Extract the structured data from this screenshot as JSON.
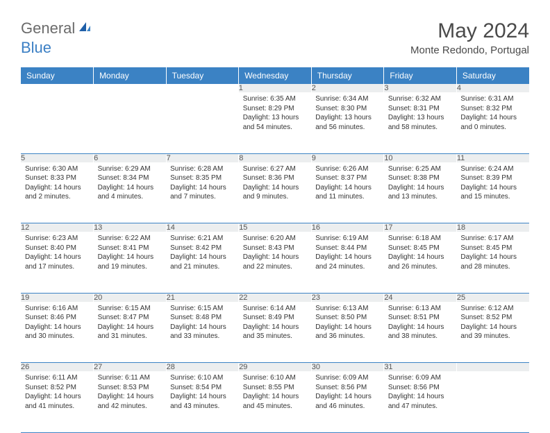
{
  "brand": {
    "part1": "General",
    "part2": "Blue"
  },
  "title": "May 2024",
  "location": "Monte Redondo, Portugal",
  "colors": {
    "header_bg": "#3b82c4",
    "header_text": "#ffffff",
    "daynum_bg": "#eceeef",
    "daynum_text": "#555555",
    "body_text": "#333333",
    "rule": "#3b82c4",
    "title_text": "#4a4a4a",
    "logo_gray": "#6b6b6b",
    "logo_blue": "#3b7fc4"
  },
  "weekdays": [
    "Sunday",
    "Monday",
    "Tuesday",
    "Wednesday",
    "Thursday",
    "Friday",
    "Saturday"
  ],
  "weeks": [
    [
      {
        "day": "",
        "sunrise": "",
        "sunset": "",
        "daylight": ""
      },
      {
        "day": "",
        "sunrise": "",
        "sunset": "",
        "daylight": ""
      },
      {
        "day": "",
        "sunrise": "",
        "sunset": "",
        "daylight": ""
      },
      {
        "day": "1",
        "sunrise": "Sunrise: 6:35 AM",
        "sunset": "Sunset: 8:29 PM",
        "daylight": "Daylight: 13 hours and 54 minutes."
      },
      {
        "day": "2",
        "sunrise": "Sunrise: 6:34 AM",
        "sunset": "Sunset: 8:30 PM",
        "daylight": "Daylight: 13 hours and 56 minutes."
      },
      {
        "day": "3",
        "sunrise": "Sunrise: 6:32 AM",
        "sunset": "Sunset: 8:31 PM",
        "daylight": "Daylight: 13 hours and 58 minutes."
      },
      {
        "day": "4",
        "sunrise": "Sunrise: 6:31 AM",
        "sunset": "Sunset: 8:32 PM",
        "daylight": "Daylight: 14 hours and 0 minutes."
      }
    ],
    [
      {
        "day": "5",
        "sunrise": "Sunrise: 6:30 AM",
        "sunset": "Sunset: 8:33 PM",
        "daylight": "Daylight: 14 hours and 2 minutes."
      },
      {
        "day": "6",
        "sunrise": "Sunrise: 6:29 AM",
        "sunset": "Sunset: 8:34 PM",
        "daylight": "Daylight: 14 hours and 4 minutes."
      },
      {
        "day": "7",
        "sunrise": "Sunrise: 6:28 AM",
        "sunset": "Sunset: 8:35 PM",
        "daylight": "Daylight: 14 hours and 7 minutes."
      },
      {
        "day": "8",
        "sunrise": "Sunrise: 6:27 AM",
        "sunset": "Sunset: 8:36 PM",
        "daylight": "Daylight: 14 hours and 9 minutes."
      },
      {
        "day": "9",
        "sunrise": "Sunrise: 6:26 AM",
        "sunset": "Sunset: 8:37 PM",
        "daylight": "Daylight: 14 hours and 11 minutes."
      },
      {
        "day": "10",
        "sunrise": "Sunrise: 6:25 AM",
        "sunset": "Sunset: 8:38 PM",
        "daylight": "Daylight: 14 hours and 13 minutes."
      },
      {
        "day": "11",
        "sunrise": "Sunrise: 6:24 AM",
        "sunset": "Sunset: 8:39 PM",
        "daylight": "Daylight: 14 hours and 15 minutes."
      }
    ],
    [
      {
        "day": "12",
        "sunrise": "Sunrise: 6:23 AM",
        "sunset": "Sunset: 8:40 PM",
        "daylight": "Daylight: 14 hours and 17 minutes."
      },
      {
        "day": "13",
        "sunrise": "Sunrise: 6:22 AM",
        "sunset": "Sunset: 8:41 PM",
        "daylight": "Daylight: 14 hours and 19 minutes."
      },
      {
        "day": "14",
        "sunrise": "Sunrise: 6:21 AM",
        "sunset": "Sunset: 8:42 PM",
        "daylight": "Daylight: 14 hours and 21 minutes."
      },
      {
        "day": "15",
        "sunrise": "Sunrise: 6:20 AM",
        "sunset": "Sunset: 8:43 PM",
        "daylight": "Daylight: 14 hours and 22 minutes."
      },
      {
        "day": "16",
        "sunrise": "Sunrise: 6:19 AM",
        "sunset": "Sunset: 8:44 PM",
        "daylight": "Daylight: 14 hours and 24 minutes."
      },
      {
        "day": "17",
        "sunrise": "Sunrise: 6:18 AM",
        "sunset": "Sunset: 8:45 PM",
        "daylight": "Daylight: 14 hours and 26 minutes."
      },
      {
        "day": "18",
        "sunrise": "Sunrise: 6:17 AM",
        "sunset": "Sunset: 8:45 PM",
        "daylight": "Daylight: 14 hours and 28 minutes."
      }
    ],
    [
      {
        "day": "19",
        "sunrise": "Sunrise: 6:16 AM",
        "sunset": "Sunset: 8:46 PM",
        "daylight": "Daylight: 14 hours and 30 minutes."
      },
      {
        "day": "20",
        "sunrise": "Sunrise: 6:15 AM",
        "sunset": "Sunset: 8:47 PM",
        "daylight": "Daylight: 14 hours and 31 minutes."
      },
      {
        "day": "21",
        "sunrise": "Sunrise: 6:15 AM",
        "sunset": "Sunset: 8:48 PM",
        "daylight": "Daylight: 14 hours and 33 minutes."
      },
      {
        "day": "22",
        "sunrise": "Sunrise: 6:14 AM",
        "sunset": "Sunset: 8:49 PM",
        "daylight": "Daylight: 14 hours and 35 minutes."
      },
      {
        "day": "23",
        "sunrise": "Sunrise: 6:13 AM",
        "sunset": "Sunset: 8:50 PM",
        "daylight": "Daylight: 14 hours and 36 minutes."
      },
      {
        "day": "24",
        "sunrise": "Sunrise: 6:13 AM",
        "sunset": "Sunset: 8:51 PM",
        "daylight": "Daylight: 14 hours and 38 minutes."
      },
      {
        "day": "25",
        "sunrise": "Sunrise: 6:12 AM",
        "sunset": "Sunset: 8:52 PM",
        "daylight": "Daylight: 14 hours and 39 minutes."
      }
    ],
    [
      {
        "day": "26",
        "sunrise": "Sunrise: 6:11 AM",
        "sunset": "Sunset: 8:52 PM",
        "daylight": "Daylight: 14 hours and 41 minutes."
      },
      {
        "day": "27",
        "sunrise": "Sunrise: 6:11 AM",
        "sunset": "Sunset: 8:53 PM",
        "daylight": "Daylight: 14 hours and 42 minutes."
      },
      {
        "day": "28",
        "sunrise": "Sunrise: 6:10 AM",
        "sunset": "Sunset: 8:54 PM",
        "daylight": "Daylight: 14 hours and 43 minutes."
      },
      {
        "day": "29",
        "sunrise": "Sunrise: 6:10 AM",
        "sunset": "Sunset: 8:55 PM",
        "daylight": "Daylight: 14 hours and 45 minutes."
      },
      {
        "day": "30",
        "sunrise": "Sunrise: 6:09 AM",
        "sunset": "Sunset: 8:56 PM",
        "daylight": "Daylight: 14 hours and 46 minutes."
      },
      {
        "day": "31",
        "sunrise": "Sunrise: 6:09 AM",
        "sunset": "Sunset: 8:56 PM",
        "daylight": "Daylight: 14 hours and 47 minutes."
      },
      {
        "day": "",
        "sunrise": "",
        "sunset": "",
        "daylight": ""
      }
    ]
  ]
}
